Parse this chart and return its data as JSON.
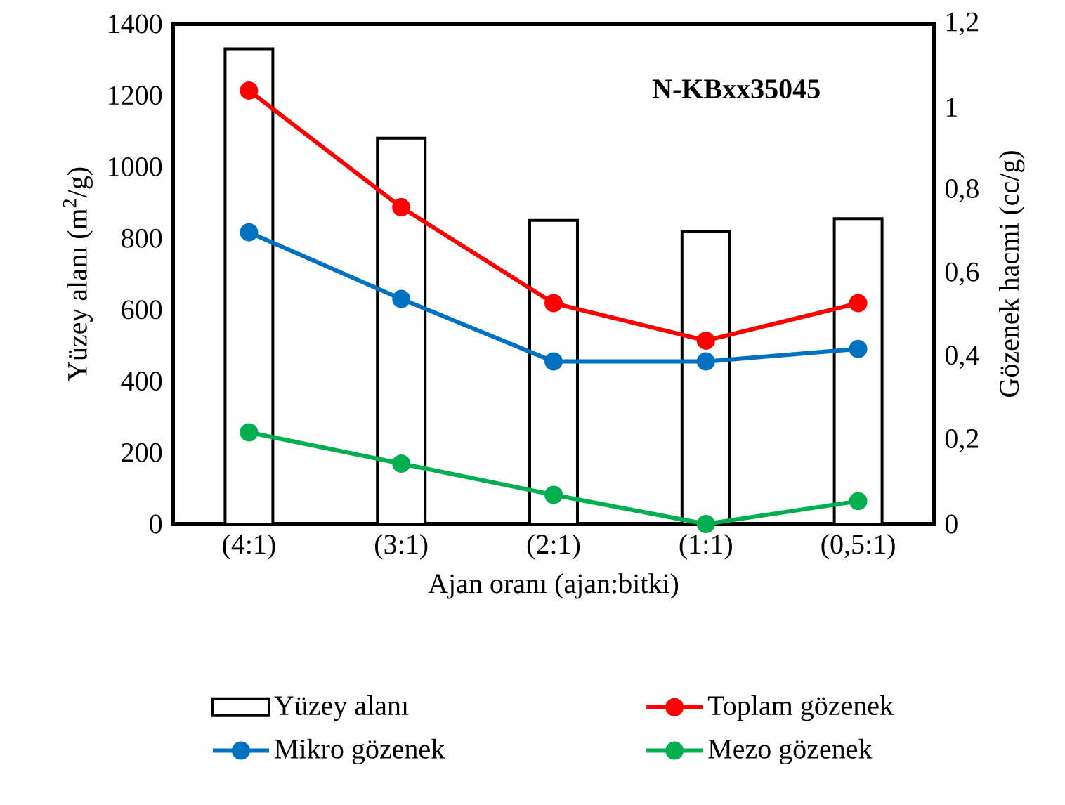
{
  "chart_data": {
    "type": "bar",
    "xlabel": "Ajan oranı (ajan:bitki)",
    "ylabel": "Yüzey alanı (m$^{2}$/g)",
    "y2label": "Gözenek hacmi (cc/g)",
    "categories": [
      "(4:1)",
      "(3:1)",
      "(2:1)",
      "(1:1)",
      "(0,5:1)"
    ],
    "series": [
      {
        "name": "Yüzey alanı",
        "color": "#ffffff",
        "values": [
          1330,
          1080,
          850,
          820,
          855
        ]
      },
      {
        "name": "Toplam gözenek",
        "type": "line",
        "axis": "y2",
        "color": "#ff0000",
        "values": [
          1.04,
          0.76,
          0.53,
          0.44,
          0.53
        ]
      },
      {
        "name": "Mikro gözenek",
        "type": "line",
        "axis": "y2",
        "color": "#0070c0",
        "values": [
          0.7,
          0.54,
          0.39,
          0.39,
          0.42
        ]
      },
      {
        "name": "Mezo gözenek",
        "type": "line",
        "axis": "y2",
        "color": "#00b050",
        "values": [
          0.22,
          0.145,
          0.07,
          0,
          0.055
        ]
      }
    ],
    "ylim": [
      0,
      1400
    ],
    "yticks": [
      0,
      200,
      400,
      600,
      800,
      1000,
      1200,
      1400
    ],
    "y2lim": [
      0,
      1.2
    ],
    "y2ticks": [
      0,
      {
        "value": 0.2,
        "label": "0,2"
      },
      {
        "value": 0.4,
        "label": "0,4"
      },
      {
        "value": 0.6,
        "label": "0,6"
      },
      {
        "value": 0.8,
        "label": "0,8"
      },
      1,
      {
        "value": 1.2,
        "label": "1,2"
      }
    ],
    "annotations": [
      "N-KBxx35045"
    ],
    "marker": "circle",
    "legend": "bottom"
  }
}
